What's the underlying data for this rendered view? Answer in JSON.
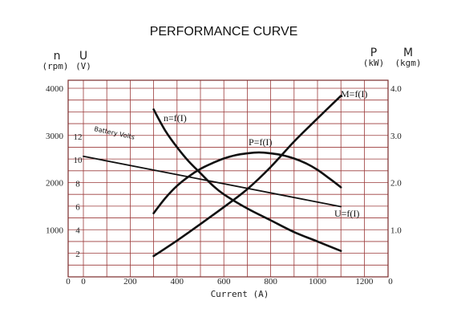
{
  "chart_data": {
    "type": "line",
    "title": "PERFORMANCE CURVE",
    "xlabel": "Current (A)",
    "xlim": [
      0,
      1300
    ],
    "x_ticks": [
      "0",
      "0",
      "200",
      "400",
      "600",
      "800",
      "1000",
      "1200",
      "0"
    ],
    "left_axis_n": {
      "symbol": "n",
      "unit": "(rpm)",
      "ylim": [
        0,
        4200
      ],
      "ticks": [
        "1000",
        "2000",
        "3000",
        "4000"
      ]
    },
    "left_axis_u": {
      "symbol": "U",
      "unit": "(V)",
      "ticks": [
        "2",
        "4",
        "6",
        "8",
        "10",
        "12"
      ]
    },
    "right_axis_p": {
      "symbol": "P",
      "unit": "(kW)"
    },
    "right_axis_m": {
      "symbol": "M",
      "unit": "(kgm)"
    },
    "right_ticks": [
      "1.0",
      "2.0",
      "3.0",
      "4.0"
    ],
    "series": [
      {
        "name": "n=f(I)",
        "axis": "n",
        "x": [
          300,
          350,
          400,
          450,
          500,
          550,
          600,
          700,
          800,
          900,
          1000,
          1100
        ],
        "y": [
          3550,
          3100,
          2750,
          2450,
          2200,
          1950,
          1750,
          1450,
          1200,
          950,
          750,
          550
        ]
      },
      {
        "name": "P=f(I)",
        "axis": "p",
        "x": [
          300,
          350,
          400,
          450,
          500,
          550,
          600,
          650,
          700,
          750,
          800,
          850,
          900,
          950,
          1000,
          1050,
          1100
        ],
        "y": [
          1.35,
          1.67,
          1.93,
          2.13,
          2.29,
          2.41,
          2.51,
          2.58,
          2.62,
          2.64,
          2.62,
          2.58,
          2.51,
          2.41,
          2.27,
          2.09,
          1.9
        ]
      },
      {
        "name": "M=f(I)",
        "axis": "p",
        "x": [
          300,
          400,
          500,
          600,
          700,
          800,
          900,
          1000,
          1100
        ],
        "y": [
          0.44,
          0.77,
          1.12,
          1.48,
          1.86,
          2.33,
          2.87,
          3.36,
          3.84
        ]
      },
      {
        "name": "U=f(I)",
        "axis": "u",
        "x": [
          0,
          1100
        ],
        "y": [
          10.3,
          6.0
        ]
      }
    ],
    "annotations": [
      "Battery Volts"
    ],
    "grid": true
  }
}
